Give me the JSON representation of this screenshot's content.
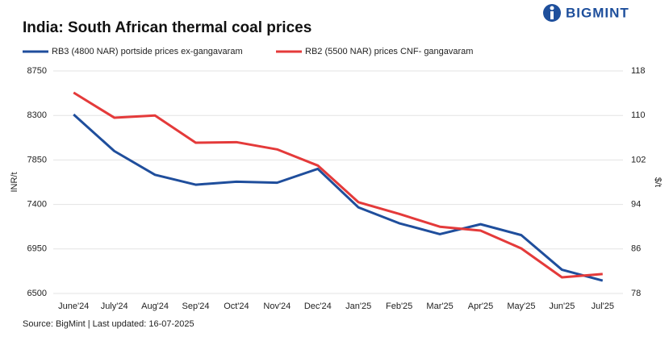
{
  "chart_data": {
    "type": "line",
    "title": "India: South African thermal coal prices",
    "brand": "BIGMINT",
    "source": "Source: BigMint | Last updated: 16-07-2025",
    "ylabel": "INR/t",
    "y2label": "$/t",
    "categories": [
      "June'24",
      "July'24",
      "Aug'24",
      "Sep'24",
      "Oct'24",
      "Nov'24",
      "Dec'24",
      "Jan'25",
      "Feb'25",
      "Mar'25",
      "Apr'25",
      "May'25",
      "Jun'25",
      "Jul'25"
    ],
    "series": [
      {
        "name": "RB3 (4800 NAR) portside prices ex-gangavaram",
        "color": "#1f4e9c",
        "values": [
          8310,
          7940,
          7700,
          7600,
          7630,
          7620,
          7760,
          7370,
          7210,
          7100,
          7200,
          7090,
          6740,
          6630
        ]
      },
      {
        "name": "RB2 (5500 NAR) prices CNF- gangavaram",
        "color": "#e43a3a",
        "axis": "y2",
        "values": [
          114.1,
          109.6,
          110.0,
          105.1,
          105.2,
          103.9,
          101.0,
          94.4,
          92.3,
          90.0,
          89.3,
          86.1,
          80.9,
          81.5
        ]
      }
    ],
    "ylim": [
      6500,
      8750
    ],
    "yticks": [
      6500,
      6950,
      7400,
      7850,
      8300,
      8750
    ],
    "y2lim": [
      78,
      118
    ],
    "y2ticks": [
      78,
      86,
      94,
      102,
      110,
      118
    ],
    "grid": true
  }
}
